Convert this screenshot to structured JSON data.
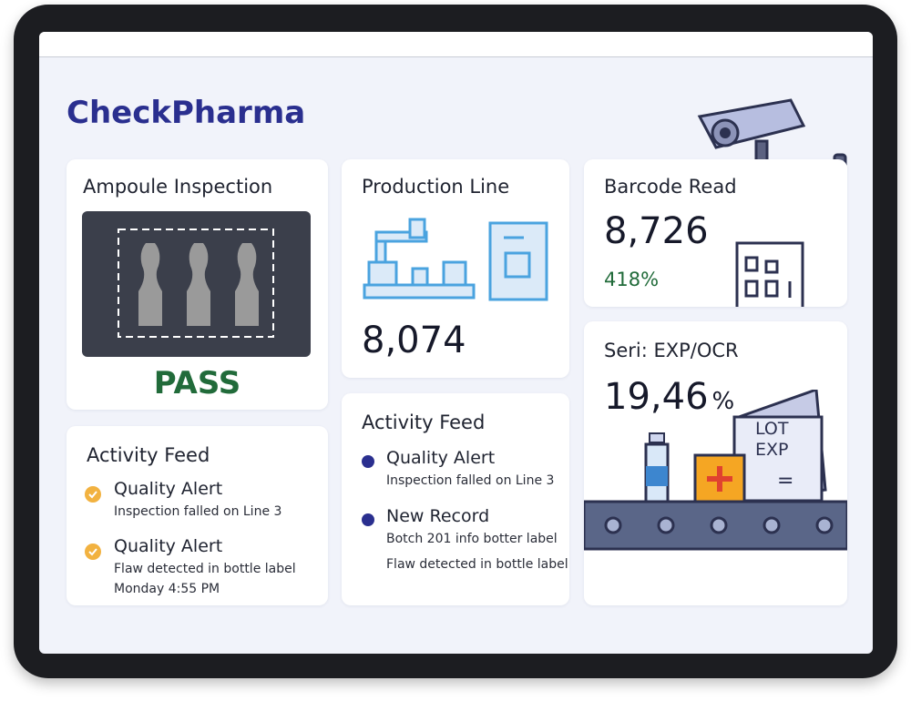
{
  "header": {
    "title": "CheckPharma"
  },
  "ampoule_card": {
    "title": "Ampoule Inspection",
    "status": "PASS"
  },
  "production_card": {
    "title": "Production Line",
    "value": "8,074"
  },
  "barcode_card": {
    "title": "Barcode Read",
    "value": "8,726",
    "change": "418%"
  },
  "seri_card": {
    "title": "Seri: EXP/OCR",
    "value": "19,46",
    "unit": "%",
    "box_labels": [
      "LOT",
      "EXP",
      "="
    ]
  },
  "feed_left": {
    "title": "Activity Feed",
    "items": [
      {
        "title": "Quality Alert",
        "lines": [
          "Inspection falled on Line 3"
        ]
      },
      {
        "title": "Quality Alert",
        "lines": [
          "Flaw detected in bottle label",
          "Monday 4:55 PM"
        ]
      }
    ]
  },
  "feed_middle": {
    "title": "Activity Feed",
    "items": [
      {
        "title": "Quality Alert",
        "lines": [
          "Inspection falled on Line 3"
        ]
      },
      {
        "title": "New Record",
        "lines": [
          "Botch 201 info botter label",
          "Flaw detected in bottle label"
        ]
      }
    ]
  }
}
